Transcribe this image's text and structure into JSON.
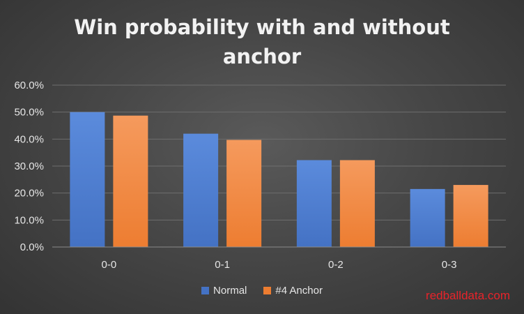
{
  "chart_data": {
    "type": "bar",
    "title_lines": [
      "Win probability with and without",
      "anchor"
    ],
    "categories": [
      "0-0",
      "0-1",
      "0-2",
      "0-3"
    ],
    "series": [
      {
        "name": "Normal",
        "values": [
          0.5,
          0.42,
          0.322,
          0.215
        ],
        "color": "#4472c4"
      },
      {
        "name": "#4 Anchor",
        "values": [
          0.487,
          0.397,
          0.322,
          0.23
        ],
        "color": "#ed7d31"
      }
    ],
    "ylim": [
      0,
      0.6
    ],
    "yticks": [
      0,
      0.1,
      0.2,
      0.3,
      0.4,
      0.5,
      0.6
    ],
    "ytick_labels": [
      "0.0%",
      "10.0%",
      "20.0%",
      "30.0%",
      "40.0%",
      "50.0%",
      "60.0%"
    ],
    "grid": true,
    "legend_position": "bottom"
  },
  "watermark": "redballdata.com"
}
